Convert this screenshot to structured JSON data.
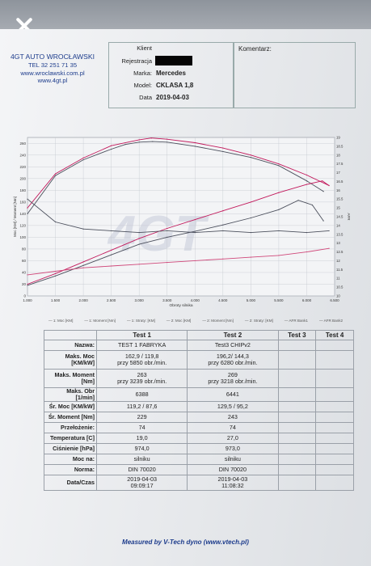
{
  "viewer": {
    "close_label": "×"
  },
  "company": {
    "name": "4GT AUTO WROCŁAWSKI",
    "phone": "TEL 32 251 71 35",
    "email": "www.wroclawski.com.pl",
    "web": "www.4gt.pl"
  },
  "header": {
    "klient_label": "Klient",
    "rejestracja_label": "Rejestracja",
    "marka_label": "Marka:",
    "marka_value": "Mercedes",
    "model_label": "Model:",
    "model_value": "CKLASA 1,8",
    "data_label": "Data",
    "data_value": "2019-04-03",
    "komentarz_label": "Komentarz:"
  },
  "chart_data": {
    "type": "line",
    "xlabel": "Obroty silnika",
    "ylabel_left": "Moc [KM] / Moment [Nm]",
    "ylabel_right": "AFR",
    "x_ticks": [
      "1.000",
      "1.500",
      "2.000",
      "2.500",
      "3.000",
      "3.500",
      "4.000",
      "4.500",
      "5.000",
      "5.500",
      "6.000",
      "6.500"
    ],
    "y_left_ticks": [
      "0",
      "20",
      "40",
      "60",
      "80",
      "100",
      "120",
      "140",
      "160",
      "180",
      "200",
      "220",
      "240",
      "260"
    ],
    "y_right_ticks": [
      "10",
      "10.5",
      "11",
      "11.5",
      "12",
      "12.5",
      "13",
      "13.5",
      "14",
      "14.5",
      "15",
      "15.5",
      "16",
      "16.5",
      "17",
      "17.5",
      "18",
      "18.5",
      "19"
    ],
    "xlim": [
      1000,
      6500
    ],
    "ylim_left": [
      0,
      270
    ],
    "ylim_right": [
      10,
      19
    ],
    "series": [
      {
        "name": "1: Moc [KM]",
        "color": "#4b4f5c",
        "axis": "left",
        "x": [
          1000,
          1500,
          2000,
          2500,
          3000,
          3500,
          4000,
          4500,
          5000,
          5500,
          5850,
          6100,
          6300
        ],
        "y": [
          18,
          34,
          52,
          70,
          88,
          100,
          110,
          121,
          133,
          147,
          163,
          155,
          128
        ]
      },
      {
        "name": "1: Moment [Nm]",
        "color": "#4b4f5c",
        "axis": "left",
        "x": [
          1000,
          1500,
          2000,
          2500,
          2750,
          3000,
          3239,
          3500,
          4000,
          4500,
          5000,
          5500,
          6000,
          6300
        ],
        "y": [
          140,
          205,
          232,
          250,
          258,
          262,
          263,
          262,
          255,
          246,
          236,
          222,
          196,
          178
        ]
      },
      {
        "name": "2: Moc [KM]",
        "color": "#c2185b",
        "axis": "left",
        "x": [
          1000,
          1500,
          2000,
          2500,
          3000,
          3500,
          4000,
          4500,
          5000,
          5500,
          6000,
          6280,
          6400
        ],
        "y": [
          20,
          38,
          58,
          78,
          98,
          115,
          130,
          145,
          160,
          176,
          190,
          196,
          188
        ]
      },
      {
        "name": "2: Moment [Nm]",
        "color": "#c2185b",
        "axis": "left",
        "x": [
          1000,
          1500,
          2000,
          2500,
          3000,
          3218,
          3500,
          4000,
          4500,
          5000,
          5500,
          6000,
          6400
        ],
        "y": [
          150,
          208,
          235,
          256,
          266,
          269,
          267,
          261,
          252,
          240,
          225,
          206,
          188
        ]
      },
      {
        "name": "AFR Bank1",
        "color": "#d0487a",
        "axis": "right",
        "x": [
          1000,
          1500,
          2000,
          2500,
          3000,
          3500,
          4000,
          4500,
          5000,
          5500,
          6000,
          6400
        ],
        "y": [
          11.2,
          11.4,
          11.6,
          11.7,
          11.8,
          11.9,
          12.0,
          12.1,
          12.2,
          12.3,
          12.5,
          12.7
        ]
      },
      {
        "name": "AFR Bank2",
        "color": "#4b4f5c",
        "axis": "right",
        "x": [
          1000,
          1500,
          2000,
          2500,
          3000,
          3500,
          4000,
          4500,
          5000,
          5500,
          6000,
          6400
        ],
        "y": [
          15.5,
          14.2,
          13.8,
          13.7,
          13.6,
          13.7,
          13.6,
          13.7,
          13.6,
          13.7,
          13.6,
          13.7
        ]
      }
    ],
    "legend_placement": "bottom",
    "grid": true
  },
  "legend": {
    "items": [
      "1: Moc [KM]",
      "1: Moment [Nm]",
      "1: Straty: [KM]",
      "2: Moc [KM]",
      "2: Moment [Nm]",
      "2: Straty: [KM]",
      "AFR Bank1",
      "AFR Bank2"
    ]
  },
  "table": {
    "headers": [
      "",
      "Test 1",
      "Test 2",
      "Test 3",
      "Test 4"
    ],
    "rows": [
      {
        "label": "Nazwa:",
        "t1": "TEST 1 FABRYKA",
        "t2": "Test3 CHIPv2",
        "t3": "",
        "t4": ""
      },
      {
        "label": "Maks. Moc [KM/kW]",
        "t1": "162,9 / 119,8",
        "t1b": "przy 5850 obr./min.",
        "t2": "196,2/ 144,3",
        "t2b": "przy 6280 obr./min.",
        "t3": "",
        "t4": ""
      },
      {
        "label": "Maks. Moment [Nm]",
        "t1": "263",
        "t1b": "przy 3239 obr./min.",
        "t2": "269",
        "t2b": "przy 3218 obr./min.",
        "t3": "",
        "t4": ""
      },
      {
        "label": "Maks. Obr [1/min]",
        "t1": "6388",
        "t2": "6441",
        "t3": "",
        "t4": ""
      },
      {
        "label": "Śr. Moc [KM/kW]",
        "t1": "119,2 / 87,6",
        "t2": "129,5 / 95,2",
        "t3": "",
        "t4": ""
      },
      {
        "label": "Śr. Moment [Nm]",
        "t1": "229",
        "t2": "243",
        "t3": "",
        "t4": ""
      },
      {
        "label": "Przełożenie:",
        "t1": "74",
        "t2": "74",
        "t3": "",
        "t4": ""
      },
      {
        "label": "Temperatura [C]",
        "t1": "19,0",
        "t2": "27,0",
        "t3": "",
        "t4": ""
      },
      {
        "label": "Ciśnienie [hPa]",
        "t1": "974,0",
        "t2": "973,0",
        "t3": "",
        "t4": ""
      },
      {
        "label": "Moc na:",
        "t1": "silniku",
        "t2": "silniku",
        "t3": "",
        "t4": ""
      },
      {
        "label": "Norma:",
        "t1": "DIN 70020",
        "t2": "DIN 70020",
        "t3": "",
        "t4": ""
      },
      {
        "label": "Data/Czas",
        "t1": "2019-04-03",
        "t1b": "09:09:17",
        "t2": "2019-04-03",
        "t2b": "11:08:32",
        "t3": "",
        "t4": ""
      }
    ]
  },
  "footer": {
    "text": "Measured by V-Tech dyno (www.vtech.pl)"
  }
}
